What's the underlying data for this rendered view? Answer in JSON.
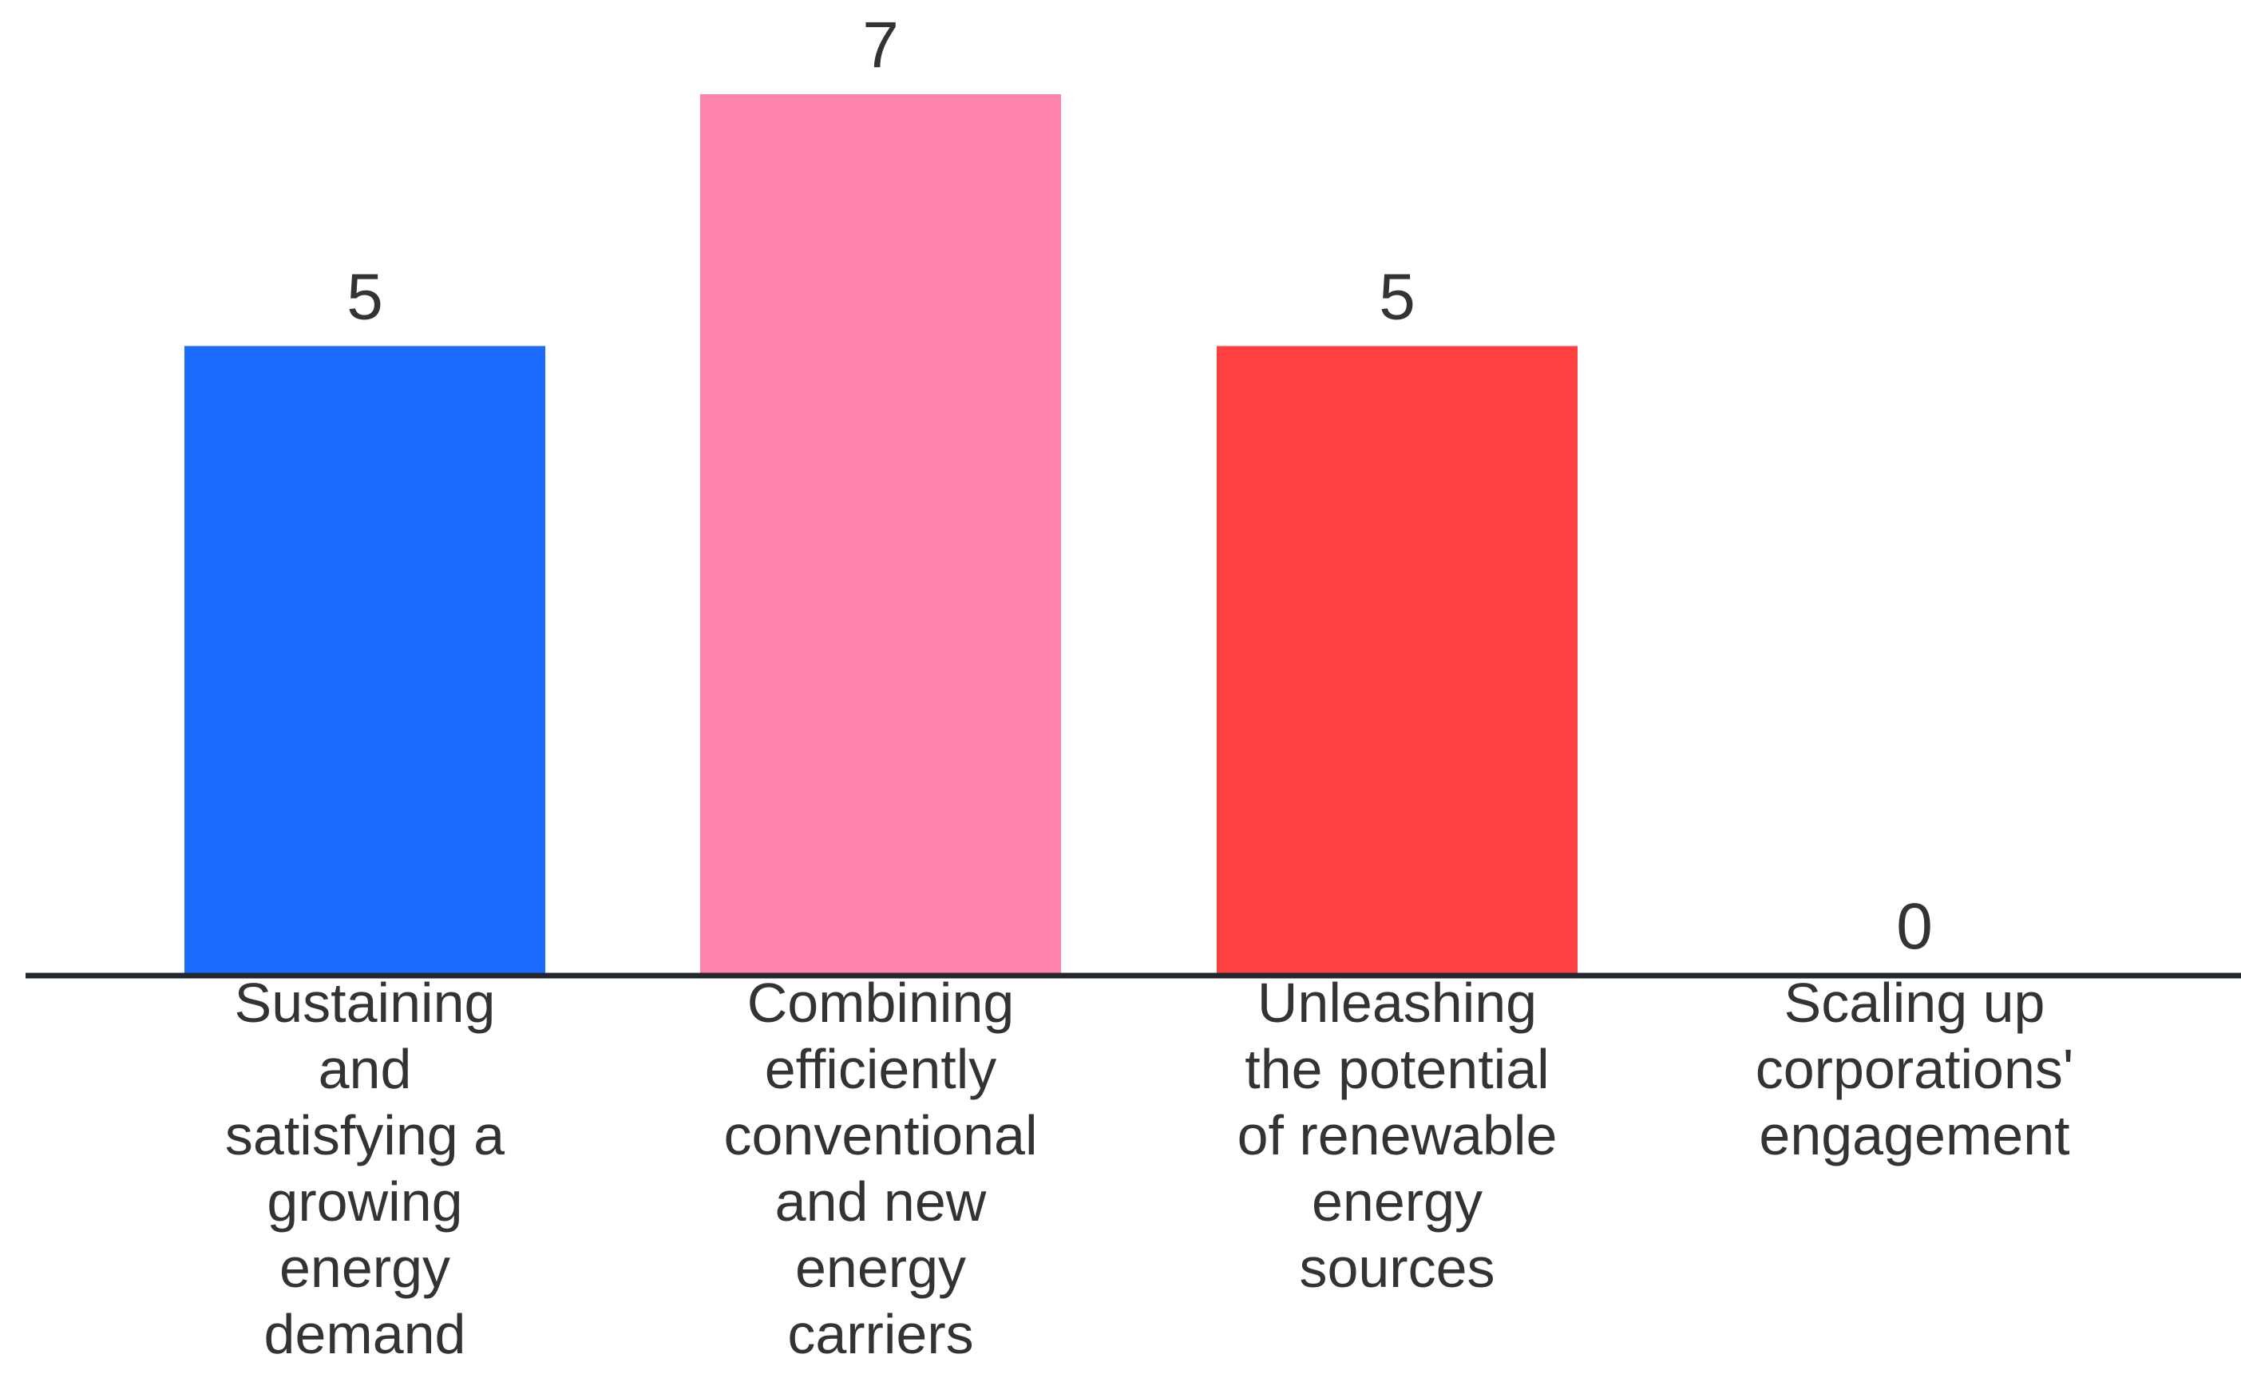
{
  "chart_data": {
    "type": "bar",
    "title": "",
    "xlabel": "",
    "ylabel": "",
    "ylim": [
      0,
      7
    ],
    "grid": false,
    "legend": "none",
    "categories": [
      "Sustaining and satisfying a growing energy demand",
      "Combining efficiently conventional and new energy carriers",
      "Unleashing the potential of renewable energy sources",
      "Scaling up corporations' engagement"
    ],
    "category_lines": [
      [
        "Sustaining",
        "and",
        "satisfying a",
        "growing",
        "energy",
        "demand"
      ],
      [
        "Combining",
        "efficiently",
        "conventional",
        "and new",
        "energy",
        "carriers"
      ],
      [
        "Unleashing",
        "the potential",
        "of renewable",
        "energy",
        "sources"
      ],
      [
        "Scaling up",
        "corporations'",
        "engagement"
      ]
    ],
    "values": [
      5,
      7,
      5,
      0
    ],
    "value_labels": [
      "5",
      "7",
      "5",
      "0"
    ],
    "colors": [
      "#1c6bff",
      "#ff82ac",
      "#ff4040",
      "#ffffff"
    ],
    "axis_color": "#23272e"
  }
}
